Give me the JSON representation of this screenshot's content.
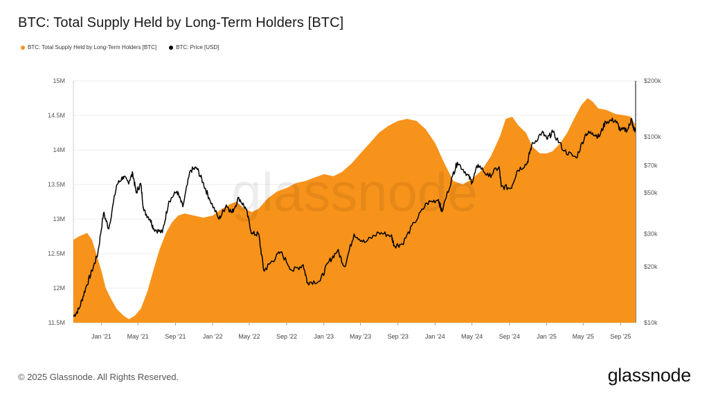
{
  "title": "BTC: Total Supply Held by Long-Term Holders [BTC]",
  "legend": [
    {
      "label": "BTC: Total Supply Held by Long-Term Holders [BTC]",
      "color": "#F7931A"
    },
    {
      "label": "BTC: Price [USD]",
      "color": "#000000"
    }
  ],
  "watermark": "glassnode",
  "footer": "© 2025 Glassnode. All Rights Reserved.",
  "logo": "glassnode",
  "colors": {
    "supply": "#F7931A",
    "price": "#000000",
    "grid": "#eeeeee"
  },
  "chart_data": {
    "type": "area",
    "grid": true,
    "legend_position": "top-left",
    "x_ticks": [
      "Jan '21",
      "May '21",
      "Sep '21",
      "Jan '22",
      "May '22",
      "Sep '22",
      "Jan '23",
      "May '23",
      "Sep '23",
      "Jan '24",
      "May '24",
      "Sep '24",
      "Jan '25",
      "May '25",
      "Sep '25"
    ],
    "x_range": [
      "2020-10-01",
      "2025-10-20"
    ],
    "y_left": {
      "label": "",
      "ticks": [
        "11.5M",
        "12M",
        "12.5M",
        "13M",
        "13.5M",
        "14M",
        "14.5M",
        "15M"
      ],
      "range": [
        11500000,
        15000000
      ]
    },
    "y_right": {
      "label": "",
      "scale": "log",
      "ticks": [
        "$10k",
        "$20k",
        "$30k",
        "$50k",
        "$70k",
        "$100k",
        "$200k"
      ],
      "tick_values": [
        10000,
        20000,
        30000,
        50000,
        70000,
        100000,
        200000
      ],
      "range": [
        10000,
        200000
      ]
    },
    "series": [
      {
        "name": "BTC: Total Supply Held by Long-Term Holders [BTC]",
        "axis": "left",
        "type": "area",
        "points": [
          [
            "2020-10-01",
            12700000
          ],
          [
            "2020-10-20",
            12750000
          ],
          [
            "2020-11-15",
            12800000
          ],
          [
            "2020-12-01",
            12700000
          ],
          [
            "2020-12-15",
            12500000
          ],
          [
            "2021-01-01",
            12250000
          ],
          [
            "2021-01-15",
            12000000
          ],
          [
            "2021-02-01",
            11850000
          ],
          [
            "2021-02-20",
            11700000
          ],
          [
            "2021-03-15",
            11600000
          ],
          [
            "2021-04-01",
            11550000
          ],
          [
            "2021-04-20",
            11600000
          ],
          [
            "2021-05-10",
            11700000
          ],
          [
            "2021-06-01",
            11950000
          ],
          [
            "2021-06-20",
            12250000
          ],
          [
            "2021-07-10",
            12550000
          ],
          [
            "2021-08-01",
            12800000
          ],
          [
            "2021-08-20",
            12950000
          ],
          [
            "2021-09-10",
            13050000
          ],
          [
            "2021-10-01",
            13080000
          ],
          [
            "2021-11-01",
            13050000
          ],
          [
            "2021-12-01",
            13020000
          ],
          [
            "2022-01-01",
            13050000
          ],
          [
            "2022-02-01",
            13150000
          ],
          [
            "2022-03-01",
            13220000
          ],
          [
            "2022-03-20",
            13250000
          ],
          [
            "2022-04-15",
            13150000
          ],
          [
            "2022-05-10",
            13100000
          ],
          [
            "2022-06-01",
            13150000
          ],
          [
            "2022-07-01",
            13300000
          ],
          [
            "2022-08-01",
            13400000
          ],
          [
            "2022-09-01",
            13450000
          ],
          [
            "2022-10-01",
            13520000
          ],
          [
            "2022-11-01",
            13550000
          ],
          [
            "2022-12-01",
            13600000
          ],
          [
            "2023-01-01",
            13650000
          ],
          [
            "2023-02-01",
            13620000
          ],
          [
            "2023-03-01",
            13680000
          ],
          [
            "2023-04-01",
            13800000
          ],
          [
            "2023-05-01",
            13950000
          ],
          [
            "2023-06-01",
            14100000
          ],
          [
            "2023-07-01",
            14250000
          ],
          [
            "2023-08-01",
            14350000
          ],
          [
            "2023-09-01",
            14420000
          ],
          [
            "2023-10-01",
            14450000
          ],
          [
            "2023-11-01",
            14420000
          ],
          [
            "2023-12-01",
            14300000
          ],
          [
            "2024-01-01",
            14100000
          ],
          [
            "2024-02-01",
            13800000
          ],
          [
            "2024-03-01",
            13550000
          ],
          [
            "2024-04-01",
            13500000
          ],
          [
            "2024-05-01",
            13580000
          ],
          [
            "2024-06-01",
            13700000
          ],
          [
            "2024-07-01",
            13900000
          ],
          [
            "2024-08-01",
            14200000
          ],
          [
            "2024-08-20",
            14450000
          ],
          [
            "2024-09-10",
            14480000
          ],
          [
            "2024-10-01",
            14350000
          ],
          [
            "2024-10-25",
            14250000
          ],
          [
            "2024-11-15",
            14050000
          ],
          [
            "2024-12-10",
            13950000
          ],
          [
            "2025-01-01",
            13950000
          ],
          [
            "2025-01-20",
            13980000
          ],
          [
            "2025-02-15",
            14100000
          ],
          [
            "2025-03-10",
            14250000
          ],
          [
            "2025-04-01",
            14450000
          ],
          [
            "2025-04-25",
            14650000
          ],
          [
            "2025-05-15",
            14750000
          ],
          [
            "2025-06-01",
            14700000
          ],
          [
            "2025-06-20",
            14600000
          ],
          [
            "2025-07-15",
            14580000
          ],
          [
            "2025-08-15",
            14520000
          ],
          [
            "2025-09-15",
            14500000
          ],
          [
            "2025-10-05",
            14480000
          ],
          [
            "2025-10-20",
            14350000
          ]
        ]
      },
      {
        "name": "BTC: Price [USD]",
        "axis": "right",
        "type": "line",
        "points": [
          [
            "2020-10-01",
            10800
          ],
          [
            "2020-10-20",
            11900
          ],
          [
            "2020-11-10",
            15300
          ],
          [
            "2020-12-01",
            19000
          ],
          [
            "2020-12-20",
            23500
          ],
          [
            "2021-01-08",
            39000
          ],
          [
            "2021-01-25",
            32000
          ],
          [
            "2021-02-20",
            55000
          ],
          [
            "2021-03-13",
            61000
          ],
          [
            "2021-03-30",
            57000
          ],
          [
            "2021-04-14",
            63500
          ],
          [
            "2021-04-25",
            50000
          ],
          [
            "2021-05-10",
            56000
          ],
          [
            "2021-05-20",
            40000
          ],
          [
            "2021-06-10",
            36000
          ],
          [
            "2021-06-22",
            32000
          ],
          [
            "2021-07-20",
            30500
          ],
          [
            "2021-08-10",
            45000
          ],
          [
            "2021-09-06",
            51000
          ],
          [
            "2021-09-25",
            42000
          ],
          [
            "2021-10-20",
            66000
          ],
          [
            "2021-11-10",
            68000
          ],
          [
            "2021-11-30",
            57000
          ],
          [
            "2021-12-20",
            47000
          ],
          [
            "2022-01-22",
            36000
          ],
          [
            "2022-02-15",
            43000
          ],
          [
            "2022-03-05",
            39000
          ],
          [
            "2022-03-28",
            47000
          ],
          [
            "2022-04-20",
            41000
          ],
          [
            "2022-05-10",
            30000
          ],
          [
            "2022-06-01",
            30000
          ],
          [
            "2022-06-18",
            19000
          ],
          [
            "2022-07-10",
            21000
          ],
          [
            "2022-08-12",
            24000
          ],
          [
            "2022-09-20",
            19000
          ],
          [
            "2022-10-25",
            20500
          ],
          [
            "2022-11-08",
            16500
          ],
          [
            "2022-12-20",
            16800
          ],
          [
            "2023-01-15",
            21000
          ],
          [
            "2023-02-15",
            24500
          ],
          [
            "2023-03-10",
            20000
          ],
          [
            "2023-04-10",
            30000
          ],
          [
            "2023-05-15",
            27000
          ],
          [
            "2023-06-30",
            30500
          ],
          [
            "2023-08-10",
            29500
          ],
          [
            "2023-08-20",
            26000
          ],
          [
            "2023-09-15",
            26500
          ],
          [
            "2023-10-25",
            34500
          ],
          [
            "2023-12-05",
            44000
          ],
          [
            "2024-01-12",
            46000
          ],
          [
            "2024-01-23",
            39500
          ],
          [
            "2024-02-28",
            62000
          ],
          [
            "2024-03-14",
            73000
          ],
          [
            "2024-04-15",
            63000
          ],
          [
            "2024-05-01",
            57000
          ],
          [
            "2024-05-21",
            71000
          ],
          [
            "2024-06-25",
            61000
          ],
          [
            "2024-07-29",
            69000
          ],
          [
            "2024-08-05",
            54000
          ],
          [
            "2024-09-06",
            53000
          ],
          [
            "2024-09-27",
            66000
          ],
          [
            "2024-10-29",
            72000
          ],
          [
            "2024-11-12",
            89000
          ],
          [
            "2024-12-17",
            106000
          ],
          [
            "2025-01-02",
            97000
          ],
          [
            "2025-01-21",
            106000
          ],
          [
            "2025-02-28",
            84000
          ],
          [
            "2025-04-08",
            77000
          ],
          [
            "2025-05-10",
            104000
          ],
          [
            "2025-06-01",
            105000
          ],
          [
            "2025-06-22",
            100000
          ],
          [
            "2025-07-14",
            121000
          ],
          [
            "2025-08-14",
            123000
          ],
          [
            "2025-09-01",
            108000
          ],
          [
            "2025-09-25",
            110000
          ],
          [
            "2025-10-06",
            125000
          ],
          [
            "2025-10-12",
            112000
          ],
          [
            "2025-10-20",
            108000
          ]
        ]
      }
    ]
  }
}
